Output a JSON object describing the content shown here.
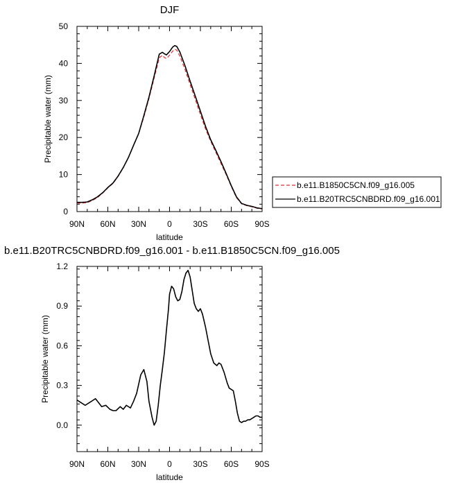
{
  "chart_data": [
    {
      "type": "line",
      "title": "DJF",
      "xlabel": "latitude",
      "ylabel": "Precipitable water (mm)",
      "xlim": [
        90,
        -90
      ],
      "ylim": [
        0,
        50
      ],
      "xticks": [
        90,
        60,
        30,
        0,
        -30,
        -60,
        -90
      ],
      "xtick_labels": [
        "90N",
        "60N",
        "30N",
        "0",
        "30S",
        "60S",
        "90S"
      ],
      "yticks": [
        0,
        10,
        20,
        30,
        40,
        50
      ],
      "ytick_labels": [
        "0",
        "10",
        "20",
        "30",
        "40",
        "50"
      ],
      "legend": "right",
      "series": [
        {
          "name": "b.e11.B1850C5CN.f09_g16.005",
          "color": "#e8262b",
          "dash": "dashed",
          "x": [
            90,
            85,
            80,
            75,
            70,
            65,
            60,
            55,
            50,
            45,
            40,
            35,
            30,
            25,
            20,
            15,
            10,
            7,
            5,
            3,
            0,
            -3,
            -5,
            -7,
            -10,
            -15,
            -20,
            -25,
            -30,
            -35,
            -40,
            -45,
            -50,
            -55,
            -60,
            -65,
            -70,
            -75,
            -80,
            -85,
            -90
          ],
          "y": [
            2.3,
            2.3,
            2.4,
            3.0,
            3.8,
            5.0,
            6.4,
            7.6,
            9.5,
            11.8,
            14.5,
            17.8,
            21.0,
            25.5,
            30.5,
            36.0,
            41.5,
            42.2,
            41.6,
            41.3,
            42.2,
            43.3,
            43.8,
            43.6,
            42.0,
            38.4,
            34.3,
            30.3,
            26.2,
            22.3,
            19.0,
            16.0,
            13.0,
            10.0,
            6.8,
            3.8,
            2.1,
            1.6,
            1.3,
            0.9,
            0.7
          ]
        },
        {
          "name": "b.e11.B20TRC5CNBDRD.f09_g16.001",
          "color": "#000000",
          "dash": "solid",
          "x": [
            90,
            85,
            80,
            75,
            70,
            65,
            60,
            55,
            50,
            45,
            40,
            35,
            30,
            25,
            20,
            15,
            10,
            7,
            5,
            3,
            0,
            -3,
            -5,
            -7,
            -10,
            -15,
            -20,
            -25,
            -30,
            -35,
            -40,
            -45,
            -50,
            -55,
            -60,
            -65,
            -70,
            -75,
            -80,
            -85,
            -90
          ],
          "y": [
            2.5,
            2.5,
            2.6,
            3.2,
            4.0,
            5.1,
            6.5,
            7.7,
            9.6,
            11.9,
            14.6,
            17.9,
            21.1,
            25.9,
            30.9,
            36.6,
            42.5,
            43.0,
            42.6,
            42.3,
            43.2,
            44.4,
            44.8,
            44.6,
            43.1,
            39.4,
            35.2,
            31.2,
            27.1,
            23.0,
            19.4,
            16.5,
            13.5,
            10.3,
            7.0,
            4.0,
            2.2,
            1.7,
            1.4,
            1.0,
            0.8
          ]
        }
      ]
    },
    {
      "type": "line",
      "title": "b.e11.B20TRC5CNBDRD.f09_g16.001 - b.e11.B1850C5CN.f09_g16.005",
      "xlabel": "latitude",
      "ylabel": "Precipitable water (mm)",
      "xlim": [
        90,
        -90
      ],
      "ylim": [
        -0.2,
        1.2
      ],
      "xticks": [
        90,
        60,
        30,
        0,
        -30,
        -60,
        -90
      ],
      "xtick_labels": [
        "90N",
        "60N",
        "30N",
        "0",
        "30S",
        "60S",
        "90S"
      ],
      "yticks": [
        0.0,
        0.3,
        0.6,
        0.9,
        1.2
      ],
      "ytick_labels": [
        "0.0",
        "0.3",
        "0.6",
        "0.9",
        "1.2"
      ],
      "series": [
        {
          "color": "#000000",
          "dash": "solid",
          "x": [
            90,
            86,
            82,
            78,
            74,
            72,
            70,
            66,
            62,
            58,
            55,
            52,
            48,
            45,
            42,
            38,
            35,
            32,
            28,
            25,
            22,
            20,
            17,
            15,
            13,
            11,
            9,
            7,
            5,
            3,
            1,
            0,
            -2,
            -4,
            -6,
            -8,
            -10,
            -12,
            -14,
            -16,
            -18,
            -20,
            -22,
            -24,
            -26,
            -28,
            -30,
            -32,
            -35,
            -38,
            -40,
            -43,
            -46,
            -48,
            -50,
            -53,
            -56,
            -58,
            -60,
            -62,
            -64,
            -66,
            -68,
            -70,
            -72,
            -74,
            -76,
            -78,
            -80,
            -82,
            -84,
            -86,
            -88,
            -90
          ],
          "y": [
            0.19,
            0.17,
            0.15,
            0.17,
            0.19,
            0.2,
            0.18,
            0.14,
            0.15,
            0.12,
            0.11,
            0.11,
            0.14,
            0.12,
            0.15,
            0.13,
            0.18,
            0.24,
            0.38,
            0.42,
            0.33,
            0.18,
            0.06,
            0.0,
            0.03,
            0.15,
            0.3,
            0.42,
            0.55,
            0.72,
            0.88,
            0.99,
            1.05,
            1.03,
            0.97,
            0.94,
            0.95,
            1.01,
            1.1,
            1.15,
            1.17,
            1.12,
            1.02,
            0.92,
            0.88,
            0.86,
            0.88,
            0.84,
            0.74,
            0.62,
            0.54,
            0.47,
            0.45,
            0.47,
            0.46,
            0.4,
            0.32,
            0.28,
            0.27,
            0.26,
            0.18,
            0.09,
            0.03,
            0.02,
            0.03,
            0.03,
            0.04,
            0.04,
            0.05,
            0.06,
            0.07,
            0.07,
            0.06,
            0.06
          ]
        }
      ]
    }
  ]
}
